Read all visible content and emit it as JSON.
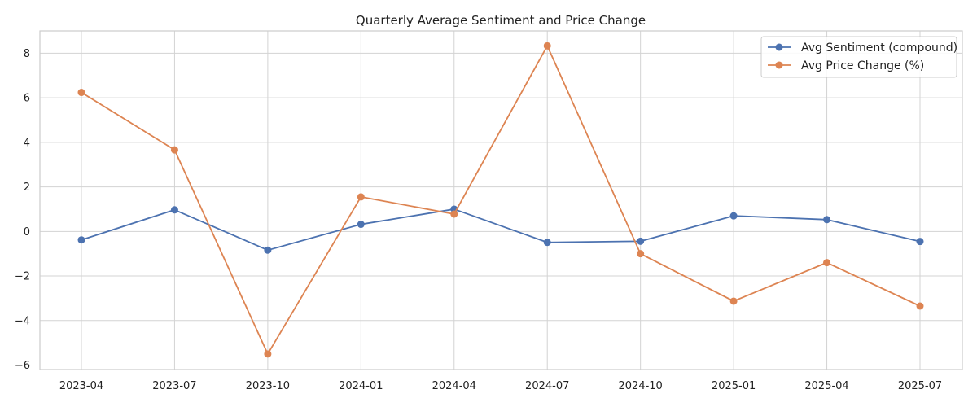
{
  "chart_data": {
    "type": "line",
    "title": "Quarterly Average Sentiment and Price Change",
    "xlabel": "",
    "ylabel": "",
    "x": [
      "2023-04",
      "2023-07",
      "2023-10",
      "2024-01",
      "2024-04",
      "2024-07",
      "2024-10",
      "2025-01",
      "2025-04",
      "2025-07"
    ],
    "ylim": [
      -6.2,
      9.0
    ],
    "yticks": [
      -6,
      -4,
      -2,
      0,
      2,
      4,
      6,
      8
    ],
    "ytick_labels": [
      "−6",
      "−4",
      "−2",
      "0",
      "2",
      "4",
      "6",
      "8"
    ],
    "grid": true,
    "legend_position": "top-right",
    "series": [
      {
        "name": "Avg Sentiment (compound)",
        "color": "#4c72b0",
        "marker": "circle",
        "values": [
          -0.38,
          0.97,
          -0.84,
          0.32,
          1.0,
          -0.49,
          -0.44,
          0.7,
          0.53,
          -0.45
        ]
      },
      {
        "name": "Avg Price Change (%)",
        "color": "#dd8452",
        "marker": "circle",
        "values": [
          6.24,
          3.66,
          -5.5,
          1.55,
          0.78,
          8.33,
          -1.0,
          -3.13,
          -1.4,
          -3.35
        ]
      }
    ]
  }
}
